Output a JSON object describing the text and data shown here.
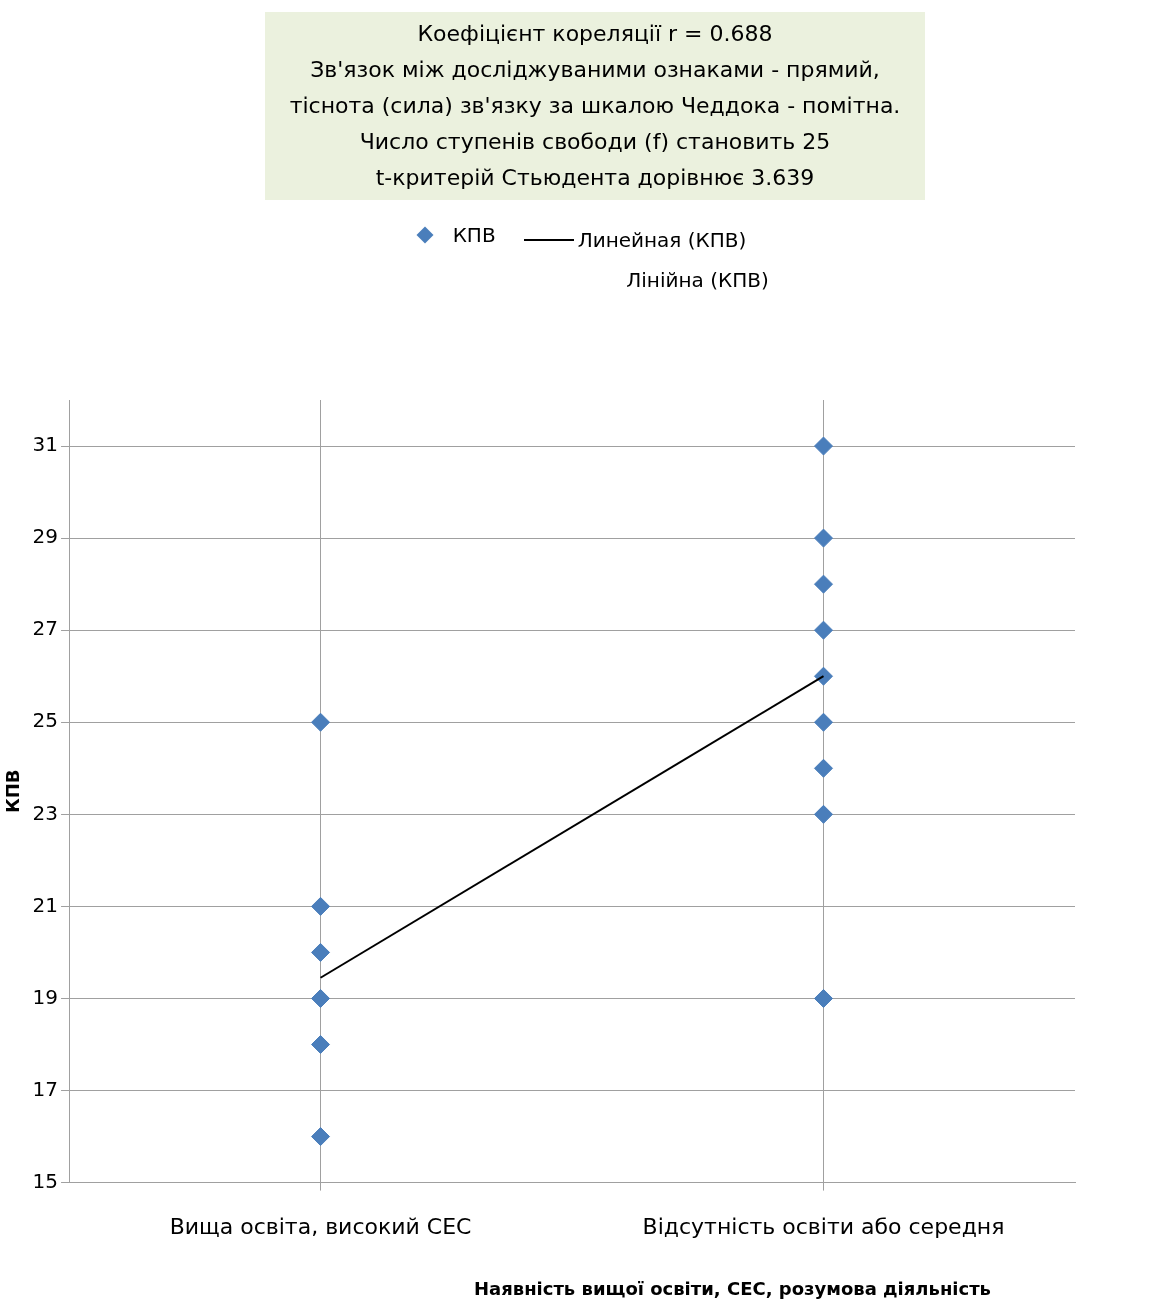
{
  "chart_data": {
    "type": "scatter",
    "title": "Коефіцієнт кореляції r = 0.688\nЗв'язок між досліджуваними ознаками - прямий,\nтіснота (сила) зв'язку за шкалою Чеддока - помітна.\nЧисло ступенів свободи (f) становить 25\nt-критерій Стьюдента дорівнює 3.639",
    "xlabel": "Наявність вищої освіти, СЕС, розумова діяльність",
    "ylabel": "КПВ",
    "annotations": [
      "Лінійна (КПВ)"
    ],
    "series": [
      {
        "name": "КПВ",
        "color": "#4a7ebb",
        "marker": "diamond",
        "x": [
          "Вища освіта, високий СЕС",
          "Вища освіта, високий СЕС",
          "Вища освіта, високий СЕС",
          "Вища освіта, високий СЕС",
          "Вища освіта, високий СЕС",
          "Вища освіта, високий СЕС",
          "Відсутність освіти або середня",
          "Відсутність освіти або середня",
          "Відсутність освіти або середня",
          "Відсутність освіти або середня",
          "Відсутність освіти або середня",
          "Відсутність освіти або середня",
          "Відсутність освіти або середня",
          "Відсутність освіти або середня",
          "Відсутність освіти або середня"
        ],
        "values": [
          25,
          21,
          20,
          19,
          18,
          16,
          31,
          29,
          28,
          27,
          26,
          25,
          24,
          23,
          19
        ]
      },
      {
        "name": "Линейная (КПВ)",
        "type": "line",
        "color": "#000000",
        "x": [
          "Вища освіта, високий СЕС",
          "Відсутність освіти або середня"
        ],
        "values": [
          19.45,
          26.0
        ]
      }
    ],
    "categories": [
      "Вища освіта, високий СЕС",
      "Відсутність освіти або середня"
    ],
    "ylim": [
      15,
      32
    ],
    "yticks": [
      15,
      17,
      19,
      21,
      23,
      25,
      27,
      29,
      31
    ],
    "grid": true,
    "legend": "top"
  }
}
